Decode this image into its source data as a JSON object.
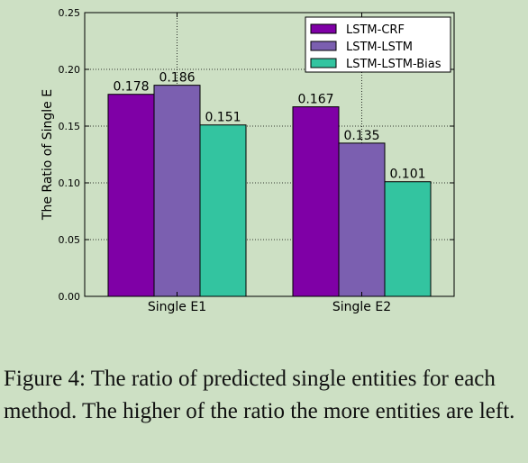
{
  "chart_data": {
    "type": "bar",
    "categories": [
      "Single E1",
      "Single E2"
    ],
    "series": [
      {
        "name": "LSTM-CRF",
        "values": [
          0.178,
          0.167
        ],
        "labels": [
          "0.178",
          "0.167"
        ],
        "color": "#7f00a6"
      },
      {
        "name": "LSTM-LSTM",
        "values": [
          0.186,
          0.135
        ],
        "labels": [
          "0.186",
          "0.135"
        ],
        "color": "#7b5fb0"
      },
      {
        "name": "LSTM-LSTM-Bias",
        "values": [
          0.151,
          0.101
        ],
        "labels": [
          "0.151",
          "0.101"
        ],
        "color": "#33c4a0"
      }
    ],
    "ylabel": "The Ratio of Single E",
    "ylim": [
      0,
      0.25
    ],
    "yticks": [
      0.0,
      0.05,
      0.1,
      0.15,
      0.2,
      0.25
    ],
    "ytick_labels": [
      "0.00",
      "0.05",
      "0.10",
      "0.15",
      "0.20",
      "0.25"
    ],
    "grid": true,
    "legend_position": "top-right"
  },
  "caption": "Figure 4: The ratio of predicted single entities for each method. The higher of the ratio the more entities are left."
}
